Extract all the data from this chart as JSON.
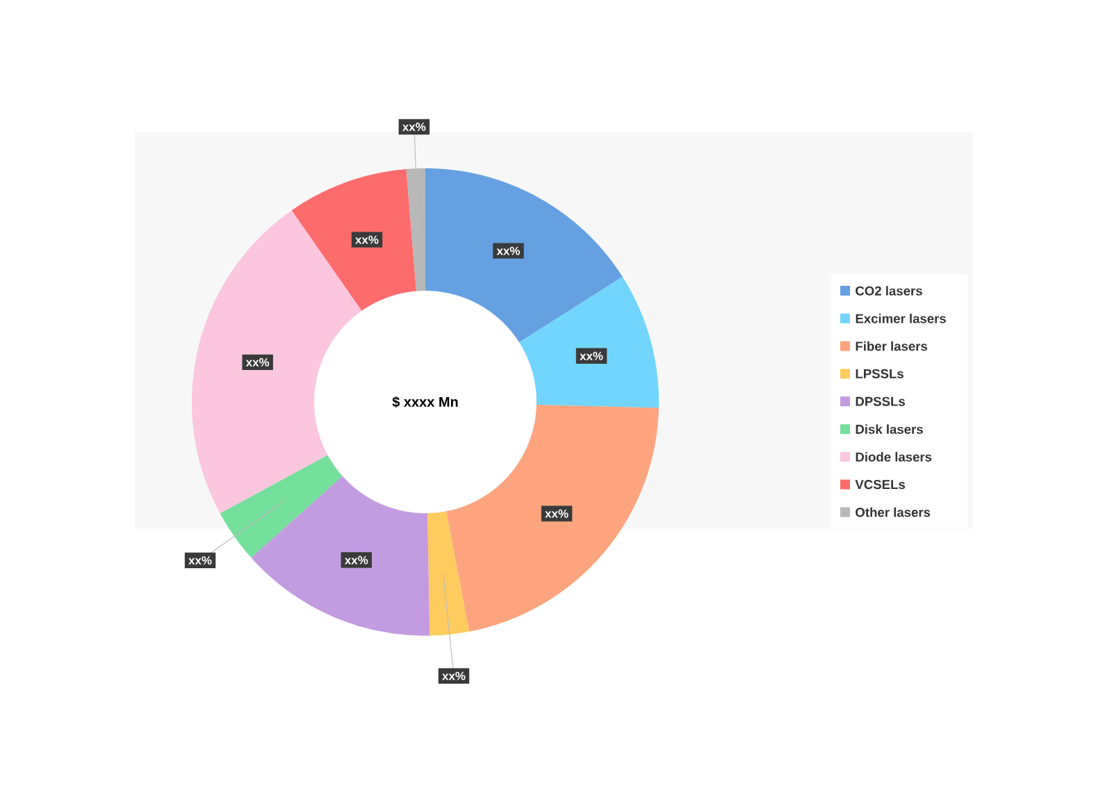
{
  "chart_data": {
    "type": "donut",
    "categories": [
      "CO2 lasers",
      "Excimer lasers",
      "Fiber lasers",
      "LPSSLs",
      "DPSSLs",
      "Disk lasers",
      "Diode lasers",
      "VCSELs",
      "Other lasers"
    ],
    "values": [
      16.0,
      9.4,
      21.6,
      2.7,
      13.7,
      3.7,
      23.2,
      8.4,
      1.3
    ],
    "colors": [
      "#65a0e2",
      "#72d5fd",
      "#fea47e",
      "#fecb5f",
      "#c39be0",
      "#74e09b",
      "#fbc6de",
      "#fe6b6c",
      "#b8b8b8"
    ],
    "value_labels": [
      "xx%",
      "xx%",
      "xx%",
      "xx%",
      "xx%",
      "xx%",
      "xx%",
      "xx%",
      "xx%"
    ],
    "annotations": [
      "$ xxxx Mn"
    ],
    "legend": "right"
  }
}
